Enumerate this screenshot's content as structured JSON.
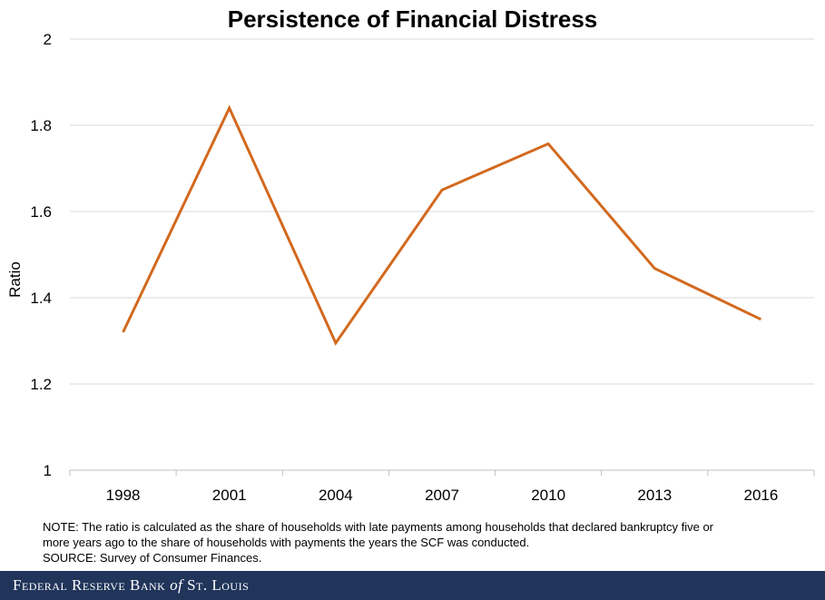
{
  "chart_data": {
    "type": "line",
    "title": "Persistence of Financial Distress",
    "xlabel": "",
    "ylabel": "Ratio",
    "categories": [
      "1998",
      "2001",
      "2004",
      "2007",
      "2010",
      "2013",
      "2016"
    ],
    "series": [
      {
        "values": [
          1.32,
          1.84,
          1.295,
          1.65,
          1.757,
          1.468,
          1.35
        ]
      }
    ],
    "ylim": [
      1,
      2
    ],
    "yticks": [
      "1",
      "1.2",
      "1.4",
      "1.6",
      "1.8",
      "2"
    ],
    "grid": true,
    "line_color": "#d2691e"
  },
  "notes": {
    "line1": "NOTE: The ratio is calculated as the share of households with late payments among households that declared bankruptcy five or",
    "line2": "more years ago to the share of households with payments the years the SCF was conducted.",
    "source": "SOURCE: Survey of Consumer Finances."
  },
  "footer": {
    "brand_before": "Federal Reserve Bank",
    "brand_of": "of",
    "brand_after": "St. Louis"
  }
}
